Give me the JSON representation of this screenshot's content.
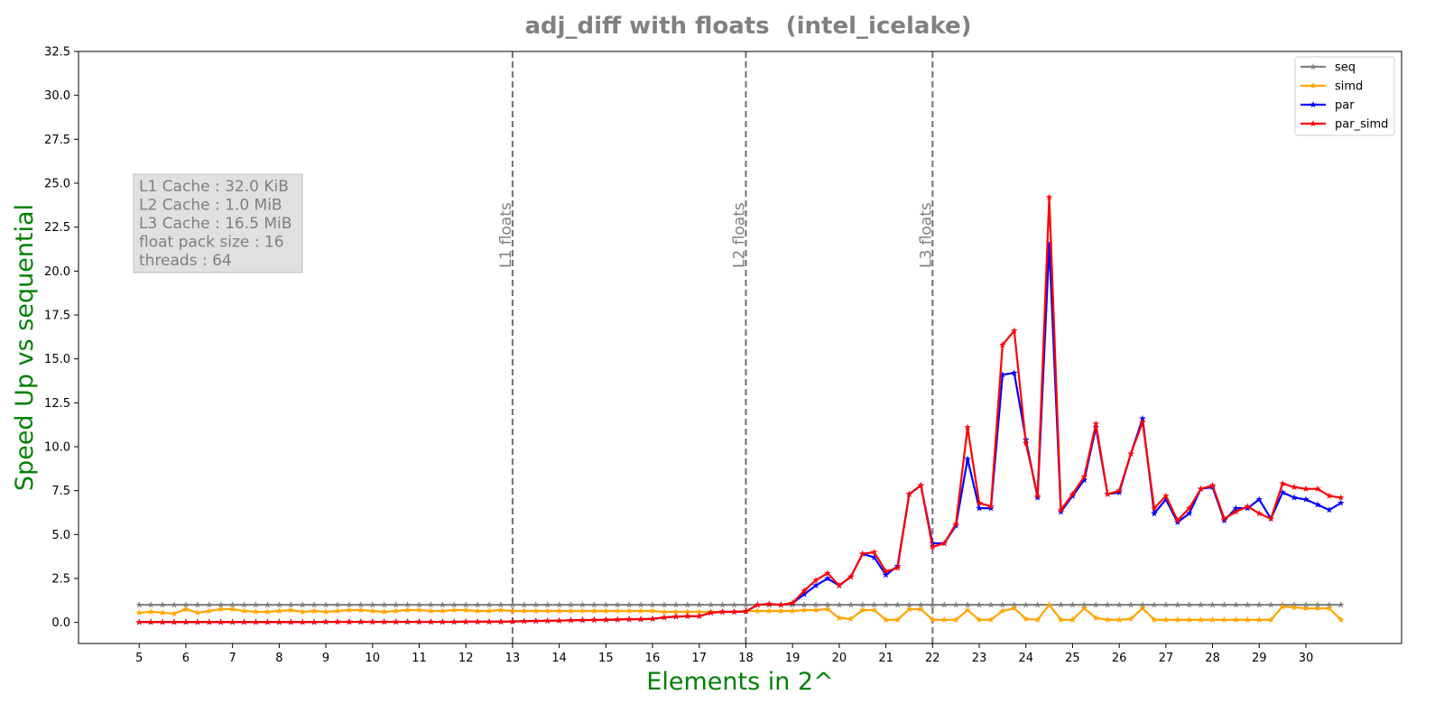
{
  "chart_data": {
    "type": "line",
    "title": "adj_diff with floats  (intel_icelake)",
    "x_label": "Elements in 2^",
    "y_label": "Speed Up vs sequential",
    "xlim": [
      3.7,
      32.05
    ],
    "ylim": [
      -1.2,
      32.5
    ],
    "xticks": [
      5,
      6,
      7,
      8,
      9,
      10,
      11,
      12,
      13,
      14,
      15,
      16,
      17,
      18,
      19,
      20,
      21,
      22,
      23,
      24,
      25,
      26,
      27,
      28,
      29,
      30
    ],
    "yticks": [
      {
        "value": 0,
        "label": "0.0"
      },
      {
        "value": 2.5,
        "label": "2.5"
      },
      {
        "value": 5,
        "label": "5.0"
      },
      {
        "value": 7.5,
        "label": "7.5"
      },
      {
        "value": 10,
        "label": "10.0"
      },
      {
        "value": 12.5,
        "label": "12.5"
      },
      {
        "value": 15,
        "label": "15.0"
      },
      {
        "value": 17.5,
        "label": "17.5"
      },
      {
        "value": 20,
        "label": "20.0"
      },
      {
        "value": 22.5,
        "label": "22.5"
      },
      {
        "value": 25,
        "label": "25.0"
      },
      {
        "value": 27.5,
        "label": "27.5"
      },
      {
        "value": 30,
        "label": "30.0"
      },
      {
        "value": 32.5,
        "label": "32.5"
      }
    ],
    "legend": "upper right",
    "vlines": [
      {
        "x": 13,
        "label": "L1 floats"
      },
      {
        "x": 18,
        "label": "L2 floats"
      },
      {
        "x": 22,
        "label": "L3 floats"
      }
    ],
    "info_box": [
      "L1 Cache : 32.0 KiB",
      "L2 Cache : 1.0 MiB",
      "L3 Cache : 16.5 MiB",
      "float pack size : 16",
      "threads : 64"
    ],
    "x": [
      5,
      5.25,
      5.5,
      5.75,
      6,
      6.25,
      6.5,
      6.75,
      7,
      7.25,
      7.5,
      7.75,
      8,
      8.25,
      8.5,
      8.75,
      9,
      9.25,
      9.5,
      9.75,
      10,
      10.25,
      10.5,
      10.75,
      11,
      11.25,
      11.5,
      11.75,
      12,
      12.25,
      12.5,
      12.75,
      13,
      13.25,
      13.5,
      13.75,
      14,
      14.25,
      14.5,
      14.75,
      15,
      15.25,
      15.5,
      15.75,
      16,
      16.25,
      16.5,
      16.75,
      17,
      17.25,
      17.5,
      17.75,
      18,
      18.25,
      18.5,
      18.75,
      19,
      19.25,
      19.5,
      19.75,
      20,
      20.25,
      20.5,
      20.75,
      21,
      21.25,
      21.5,
      21.75,
      22,
      22.25,
      22.5,
      22.75,
      23,
      23.25,
      23.5,
      23.75,
      24,
      24.25,
      24.5,
      24.75,
      25,
      25.25,
      25.5,
      25.75,
      26,
      26.25,
      26.5,
      26.75,
      27,
      27.25,
      27.5,
      27.75,
      28,
      28.25,
      28.5,
      28.75,
      29,
      29.25,
      29.5,
      29.75,
      30,
      30.25,
      30.5,
      30.75
    ],
    "series": [
      {
        "name": "seq",
        "color": "#808080",
        "values": [
          1,
          1,
          1,
          1,
          1,
          1,
          1,
          1,
          1,
          1,
          1,
          1,
          1,
          1,
          1,
          1,
          1,
          1,
          1,
          1,
          1,
          1,
          1,
          1,
          1,
          1,
          1,
          1,
          1,
          1,
          1,
          1,
          1,
          1,
          1,
          1,
          1,
          1,
          1,
          1,
          1,
          1,
          1,
          1,
          1,
          1,
          1,
          1,
          1,
          1,
          1,
          1,
          1,
          1,
          1,
          1,
          1,
          1,
          1,
          1,
          1,
          1,
          1,
          1,
          1,
          1,
          1,
          1,
          1,
          1,
          1,
          1,
          1,
          1,
          1,
          1,
          1,
          1,
          1,
          1,
          1,
          1,
          1,
          1,
          1,
          1,
          1,
          1,
          1,
          1,
          1,
          1,
          1,
          1,
          1,
          1,
          1,
          1,
          1,
          1,
          1,
          1,
          1,
          1
        ]
      },
      {
        "name": "simd",
        "color": "#ffa500",
        "values": [
          0.55,
          0.6,
          0.55,
          0.5,
          0.75,
          0.55,
          0.65,
          0.75,
          0.75,
          0.65,
          0.6,
          0.6,
          0.65,
          0.7,
          0.6,
          0.65,
          0.6,
          0.65,
          0.7,
          0.7,
          0.65,
          0.6,
          0.65,
          0.7,
          0.7,
          0.65,
          0.65,
          0.7,
          0.7,
          0.65,
          0.65,
          0.7,
          0.65,
          0.65,
          0.65,
          0.65,
          0.65,
          0.65,
          0.65,
          0.65,
          0.65,
          0.65,
          0.65,
          0.65,
          0.65,
          0.6,
          0.6,
          0.6,
          0.6,
          0.6,
          0.6,
          0.6,
          0.65,
          0.65,
          0.65,
          0.65,
          0.65,
          0.7,
          0.7,
          0.75,
          0.25,
          0.2,
          0.7,
          0.7,
          0.15,
          0.15,
          0.75,
          0.75,
          0.15,
          0.15,
          0.15,
          0.7,
          0.15,
          0.15,
          0.65,
          0.8,
          0.2,
          0.15,
          1.0,
          0.15,
          0.15,
          0.8,
          0.25,
          0.15,
          0.15,
          0.2,
          0.8,
          0.15,
          0.15,
          0.15,
          0.15,
          0.15,
          0.15,
          0.15,
          0.15,
          0.15,
          0.15,
          0.15,
          0.9,
          0.85,
          0.8,
          0.8,
          0.8,
          0.15
        ]
      },
      {
        "name": "par",
        "color": "#0000ff",
        "values": [
          0.02,
          0.02,
          0.02,
          0.02,
          0.02,
          0.02,
          0.02,
          0.02,
          0.02,
          0.02,
          0.02,
          0.02,
          0.02,
          0.02,
          0.02,
          0.02,
          0.03,
          0.03,
          0.03,
          0.03,
          0.03,
          0.03,
          0.03,
          0.03,
          0.03,
          0.03,
          0.03,
          0.03,
          0.04,
          0.04,
          0.04,
          0.04,
          0.05,
          0.07,
          0.08,
          0.09,
          0.1,
          0.12,
          0.13,
          0.14,
          0.15,
          0.16,
          0.18,
          0.18,
          0.2,
          0.28,
          0.33,
          0.35,
          0.35,
          0.55,
          0.6,
          0.6,
          0.62,
          1.0,
          1.05,
          1.0,
          1.1,
          1.6,
          2.1,
          2.5,
          2.1,
          2.6,
          3.9,
          3.7,
          2.7,
          3.2,
          7.3,
          7.8,
          4.5,
          4.5,
          5.5,
          9.3,
          6.5,
          6.5,
          14.1,
          14.2,
          10.4,
          7.1,
          21.5,
          6.3,
          7.2,
          8.1,
          11.1,
          7.3,
          7.4,
          9.6,
          11.6,
          6.2,
          7.0,
          5.7,
          6.2,
          7.6,
          7.7,
          5.8,
          6.5,
          6.5,
          7.0,
          5.9,
          7.4,
          7.1,
          7.0,
          6.7,
          6.4,
          6.8
        ]
      },
      {
        "name": "par_simd",
        "color": "#ff0000",
        "values": [
          0.02,
          0.02,
          0.02,
          0.02,
          0.02,
          0.02,
          0.02,
          0.02,
          0.02,
          0.02,
          0.02,
          0.02,
          0.02,
          0.02,
          0.02,
          0.02,
          0.03,
          0.03,
          0.03,
          0.03,
          0.03,
          0.03,
          0.03,
          0.03,
          0.03,
          0.03,
          0.03,
          0.03,
          0.04,
          0.04,
          0.04,
          0.04,
          0.05,
          0.07,
          0.08,
          0.09,
          0.1,
          0.12,
          0.13,
          0.14,
          0.15,
          0.16,
          0.18,
          0.18,
          0.2,
          0.28,
          0.33,
          0.35,
          0.35,
          0.55,
          0.6,
          0.6,
          0.62,
          1.0,
          1.05,
          1.0,
          1.1,
          1.8,
          2.4,
          2.8,
          2.1,
          2.6,
          3.9,
          4.0,
          2.9,
          3.1,
          7.3,
          7.8,
          4.3,
          4.5,
          5.6,
          11.1,
          6.8,
          6.6,
          15.8,
          16.6,
          10.2,
          7.2,
          24.2,
          6.4,
          7.3,
          8.3,
          11.3,
          7.3,
          7.5,
          9.6,
          11.4,
          6.5,
          7.2,
          5.8,
          6.5,
          7.6,
          7.8,
          5.9,
          6.3,
          6.6,
          6.2,
          5.9,
          7.9,
          7.7,
          7.6,
          7.6,
          7.2,
          7.1
        ]
      }
    ]
  }
}
